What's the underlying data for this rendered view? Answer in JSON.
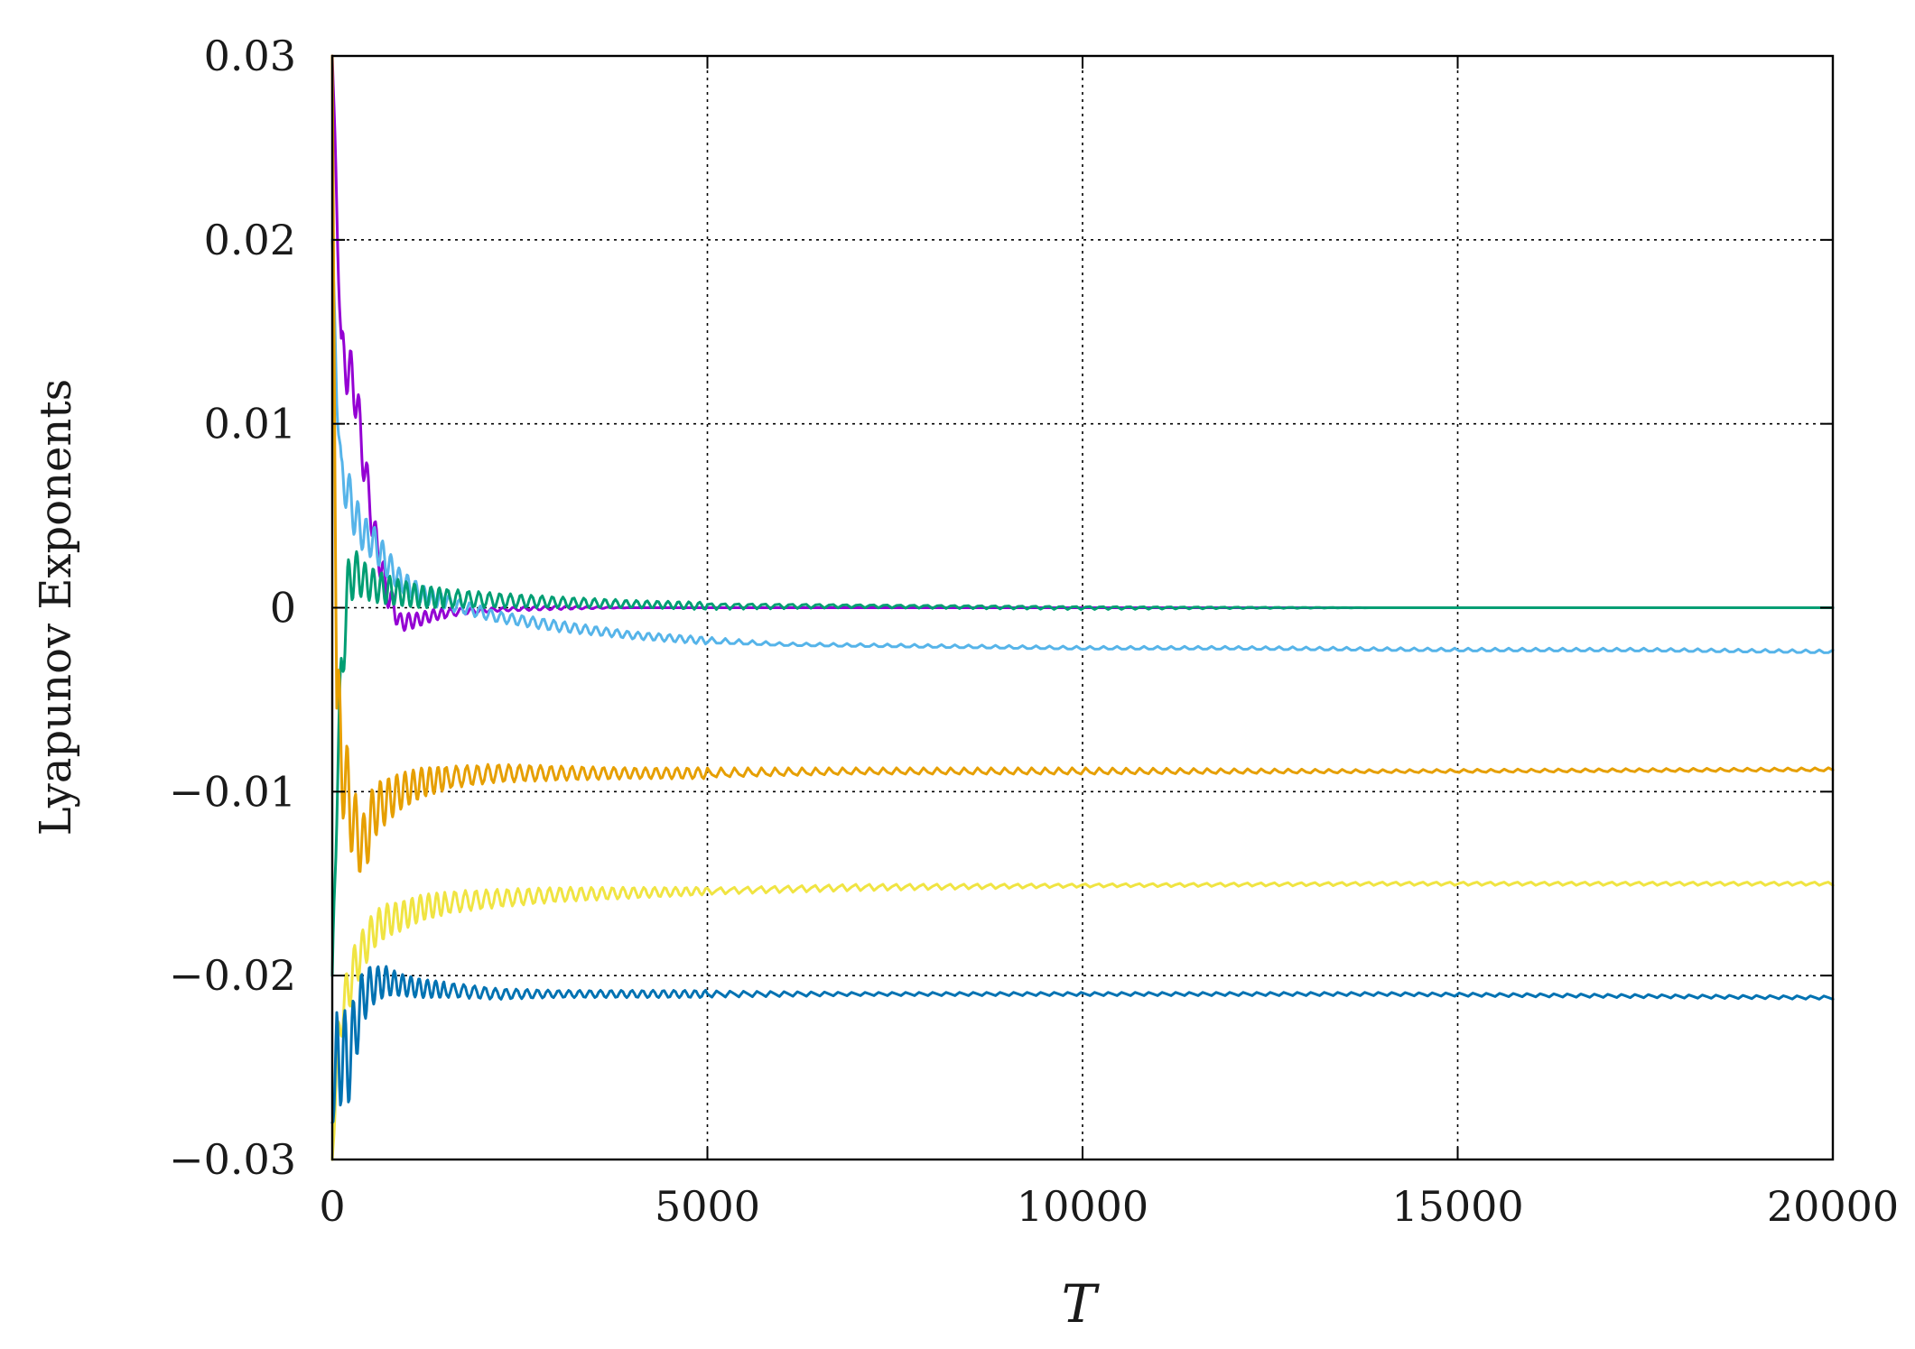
{
  "chart_data": {
    "type": "line",
    "title": "",
    "xlabel": "T",
    "ylabel": "Lyapunov Exponents",
    "xlim": [
      0,
      20000
    ],
    "ylim": [
      -0.03,
      0.03
    ],
    "xticks": [
      0,
      5000,
      10000,
      15000,
      20000
    ],
    "xtick_labels": [
      "0",
      "5000",
      "10000",
      "15000",
      "20000"
    ],
    "yticks": [
      0.03,
      0.02,
      0.01,
      0,
      -0.01,
      -0.02,
      -0.03
    ],
    "ytick_labels": [
      "0.03",
      "0.02",
      "0.01",
      "0",
      "−0.01",
      "−0.02",
      "−0.03"
    ],
    "grid": true,
    "legend": "none",
    "series": [
      {
        "color": "#9400d3",
        "x": [
          0,
          60,
          120,
          200,
          300,
          420,
          560,
          720,
          900,
          1100,
          1350,
          1700,
          2200,
          3000,
          4000,
          6000,
          8000,
          12000,
          16000,
          20000
        ],
        "y": [
          0.03,
          0.022,
          0.014,
          0.013,
          0.012,
          0.008,
          0.004,
          0.001,
          -0.0008,
          -0.0007,
          -0.0004,
          -0.0002,
          -0.0001,
          0,
          0,
          0,
          0,
          0,
          0,
          0
        ],
        "oscillation": [
          0,
          0.001,
          0.0012,
          0.0015,
          0.0015,
          0.0012,
          0.001,
          0.0008,
          0.0005,
          0.0004,
          0.0003,
          0.0002,
          0.0001,
          0.0001,
          0,
          0,
          0,
          0,
          0,
          0
        ]
      },
      {
        "color": "#56b4e9",
        "x": [
          0,
          60,
          120,
          200,
          300,
          420,
          560,
          720,
          900,
          1200,
          1600,
          2200,
          3000,
          4000,
          5000,
          6000,
          8000,
          10000,
          12000,
          15000,
          17500,
          20000
        ],
        "y": [
          0.02,
          0.012,
          0.007,
          0.0065,
          0.005,
          0.004,
          0.0035,
          0.0025,
          0.0015,
          0.0007,
          0.0002,
          -0.0005,
          -0.001,
          -0.0015,
          -0.0018,
          -0.002,
          -0.0021,
          -0.0022,
          -0.0022,
          -0.0023,
          -0.0023,
          -0.0024
        ],
        "oscillation": [
          0,
          0.001,
          0.0012,
          0.0012,
          0.0012,
          0.001,
          0.0009,
          0.0008,
          0.0006,
          0.0005,
          0.0004,
          0.0003,
          0.0003,
          0.0002,
          0.0002,
          0.0001,
          0.0001,
          0.0001,
          0.0001,
          0.0001,
          0.0001,
          0.0001
        ]
      },
      {
        "color": "#009e73",
        "x": [
          0,
          60,
          120,
          200,
          300,
          420,
          560,
          720,
          900,
          1200,
          1600,
          2200,
          3000,
          4000,
          5000,
          7000,
          10000,
          14000,
          20000
        ],
        "y": [
          -0.02,
          -0.01,
          -0.004,
          0.001,
          0.002,
          0.0015,
          0.0012,
          0.001,
          0.0008,
          0.0006,
          0.0005,
          0.0004,
          0.0003,
          0.0002,
          0.0001,
          0.0001,
          0,
          0,
          0
        ],
        "oscillation": [
          0,
          0.002,
          0.0018,
          0.0015,
          0.0012,
          0.001,
          0.0009,
          0.0008,
          0.0007,
          0.0006,
          0.0005,
          0.0004,
          0.0003,
          0.0002,
          0.0002,
          0.0001,
          0.0001,
          0,
          0
        ]
      },
      {
        "color": "#e69f00",
        "x": [
          0,
          60,
          120,
          200,
          300,
          420,
          560,
          720,
          900,
          1200,
          1600,
          2200,
          3000,
          4000,
          5000,
          7000,
          10000,
          14000,
          20000
        ],
        "y": [
          0.03,
          -0.005,
          -0.008,
          -0.01,
          -0.012,
          -0.013,
          -0.011,
          -0.0105,
          -0.01,
          -0.0095,
          -0.0092,
          -0.009,
          -0.009,
          -0.009,
          -0.009,
          -0.0089,
          -0.0089,
          -0.0089,
          -0.0088
        ],
        "oscillation": [
          0,
          0.003,
          0.003,
          0.0025,
          0.002,
          0.0018,
          0.0015,
          0.0012,
          0.001,
          0.0008,
          0.0006,
          0.0005,
          0.0004,
          0.0003,
          0.0003,
          0.0002,
          0.0002,
          0.0001,
          0.0001
        ]
      },
      {
        "color": "#f0e442",
        "x": [
          0,
          60,
          120,
          200,
          300,
          420,
          560,
          720,
          900,
          1200,
          1600,
          2200,
          3000,
          4000,
          5000,
          7000,
          10000,
          14000,
          20000
        ],
        "y": [
          -0.03,
          -0.025,
          -0.022,
          -0.021,
          -0.0195,
          -0.0185,
          -0.0175,
          -0.017,
          -0.0168,
          -0.0163,
          -0.016,
          -0.0158,
          -0.0156,
          -0.0155,
          -0.0154,
          -0.0152,
          -0.0151,
          -0.015,
          -0.015
        ],
        "oscillation": [
          0,
          0.0015,
          0.0015,
          0.0013,
          0.0012,
          0.0011,
          0.001,
          0.0009,
          0.0008,
          0.0007,
          0.0006,
          0.0005,
          0.0004,
          0.0003,
          0.0002,
          0.0002,
          0.0001,
          0.0001,
          0.0001
        ]
      },
      {
        "color": "#0072b2",
        "x": [
          0,
          60,
          120,
          200,
          300,
          420,
          560,
          720,
          900,
          1200,
          1600,
          2200,
          3000,
          4000,
          5000,
          7000,
          10000,
          14000,
          20000
        ],
        "y": [
          -0.028,
          -0.025,
          -0.024,
          -0.025,
          -0.023,
          -0.021,
          -0.0205,
          -0.0203,
          -0.0205,
          -0.0207,
          -0.0208,
          -0.021,
          -0.021,
          -0.021,
          -0.021,
          -0.021,
          -0.021,
          -0.021,
          -0.0212
        ],
        "oscillation": [
          0,
          0.003,
          0.003,
          0.0025,
          0.002,
          0.0015,
          0.001,
          0.0008,
          0.0006,
          0.0005,
          0.0004,
          0.0003,
          0.0002,
          0.0002,
          0.0002,
          0.0001,
          0.0001,
          0.0001,
          0.0001
        ]
      }
    ]
  }
}
